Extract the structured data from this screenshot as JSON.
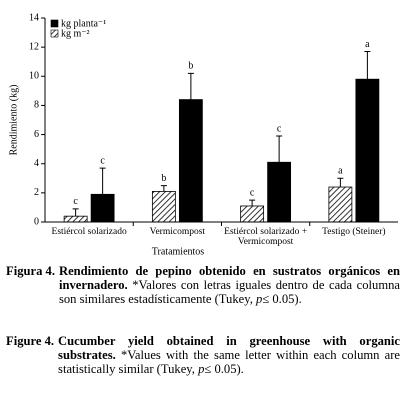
{
  "chart_data": {
    "type": "bar",
    "y_label": "Rendimiento (kg)",
    "x_label": "Tratamientos",
    "categories": [
      "Estiércol solarizado",
      "Vermicompost",
      "Estiércol solarizado + Vermicompost",
      "Testigo (Steiner)"
    ],
    "series": [
      {
        "name": "kg m⁻²",
        "color": "#000000",
        "pattern": "hatch",
        "values": [
          0.4,
          2.1,
          1.1,
          2.4
        ],
        "errors": [
          0.5,
          0.4,
          0.4,
          0.6
        ],
        "letters": [
          "c",
          "b",
          "c",
          "a"
        ]
      },
      {
        "name": "kg planta⁻¹",
        "color": "#000000",
        "pattern": "solid",
        "values": [
          1.9,
          8.4,
          4.1,
          9.8
        ],
        "errors": [
          1.8,
          1.8,
          1.8,
          1.9
        ],
        "letters": [
          "c",
          "b",
          "c",
          "a"
        ]
      }
    ],
    "ylim": [
      0,
      14
    ],
    "yticks": [
      0,
      2,
      4,
      6,
      8,
      10,
      12,
      14
    ],
    "legend": "top-left"
  },
  "captions": [
    {
      "label": "Figura 4.",
      "title": "Rendimiento de pepino obtenido en sustratos orgánicos en invernadero.",
      "note": " *Valores con letras iguales dentro de cada columna son similares estadísticamente (Tukey, ",
      "note_italic": "p",
      "note_end": "≤ 0.05)."
    },
    {
      "label": "Figure 4.",
      "title": "Cucumber yield obtained in greenhouse with organic substrates.",
      "note": " *Values with the same letter within each column are statistically similar (Tukey, ",
      "note_italic": "p",
      "note_end": "≤ 0.05)."
    }
  ]
}
